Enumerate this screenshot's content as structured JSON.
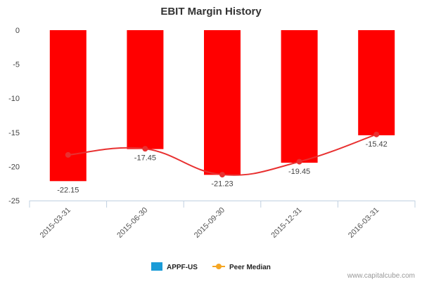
{
  "chart_data": {
    "type": "bar",
    "title": "EBIT Margin History",
    "categories": [
      "2015-03-31",
      "2015-06-30",
      "2015-09-30",
      "2015-12-31",
      "2016-03-31"
    ],
    "series": [
      {
        "name": "APPF-US",
        "kind": "bar",
        "color": "#ff0000",
        "legend_color": "#1a9bd7",
        "values": [
          -22.15,
          -17.45,
          -21.23,
          -19.45,
          -15.42
        ]
      },
      {
        "name": "Peer Median",
        "kind": "line",
        "color": "#e83030",
        "legend_color": "#f5a623",
        "values": [
          -18.3,
          -17.4,
          -21.2,
          -19.3,
          -15.3
        ]
      }
    ],
    "data_labels": [
      "-22.15",
      "-17.45",
      "-21.23",
      "-19.45",
      "-15.42"
    ],
    "yticks": [
      0,
      -5,
      -10,
      -15,
      -20,
      -25
    ],
    "ylim": [
      -25,
      0
    ],
    "xlabel": "",
    "ylabel": "",
    "grid": false,
    "legend_position": "bottom-center"
  },
  "footer": {
    "credit": "www.capitalcube.com"
  }
}
